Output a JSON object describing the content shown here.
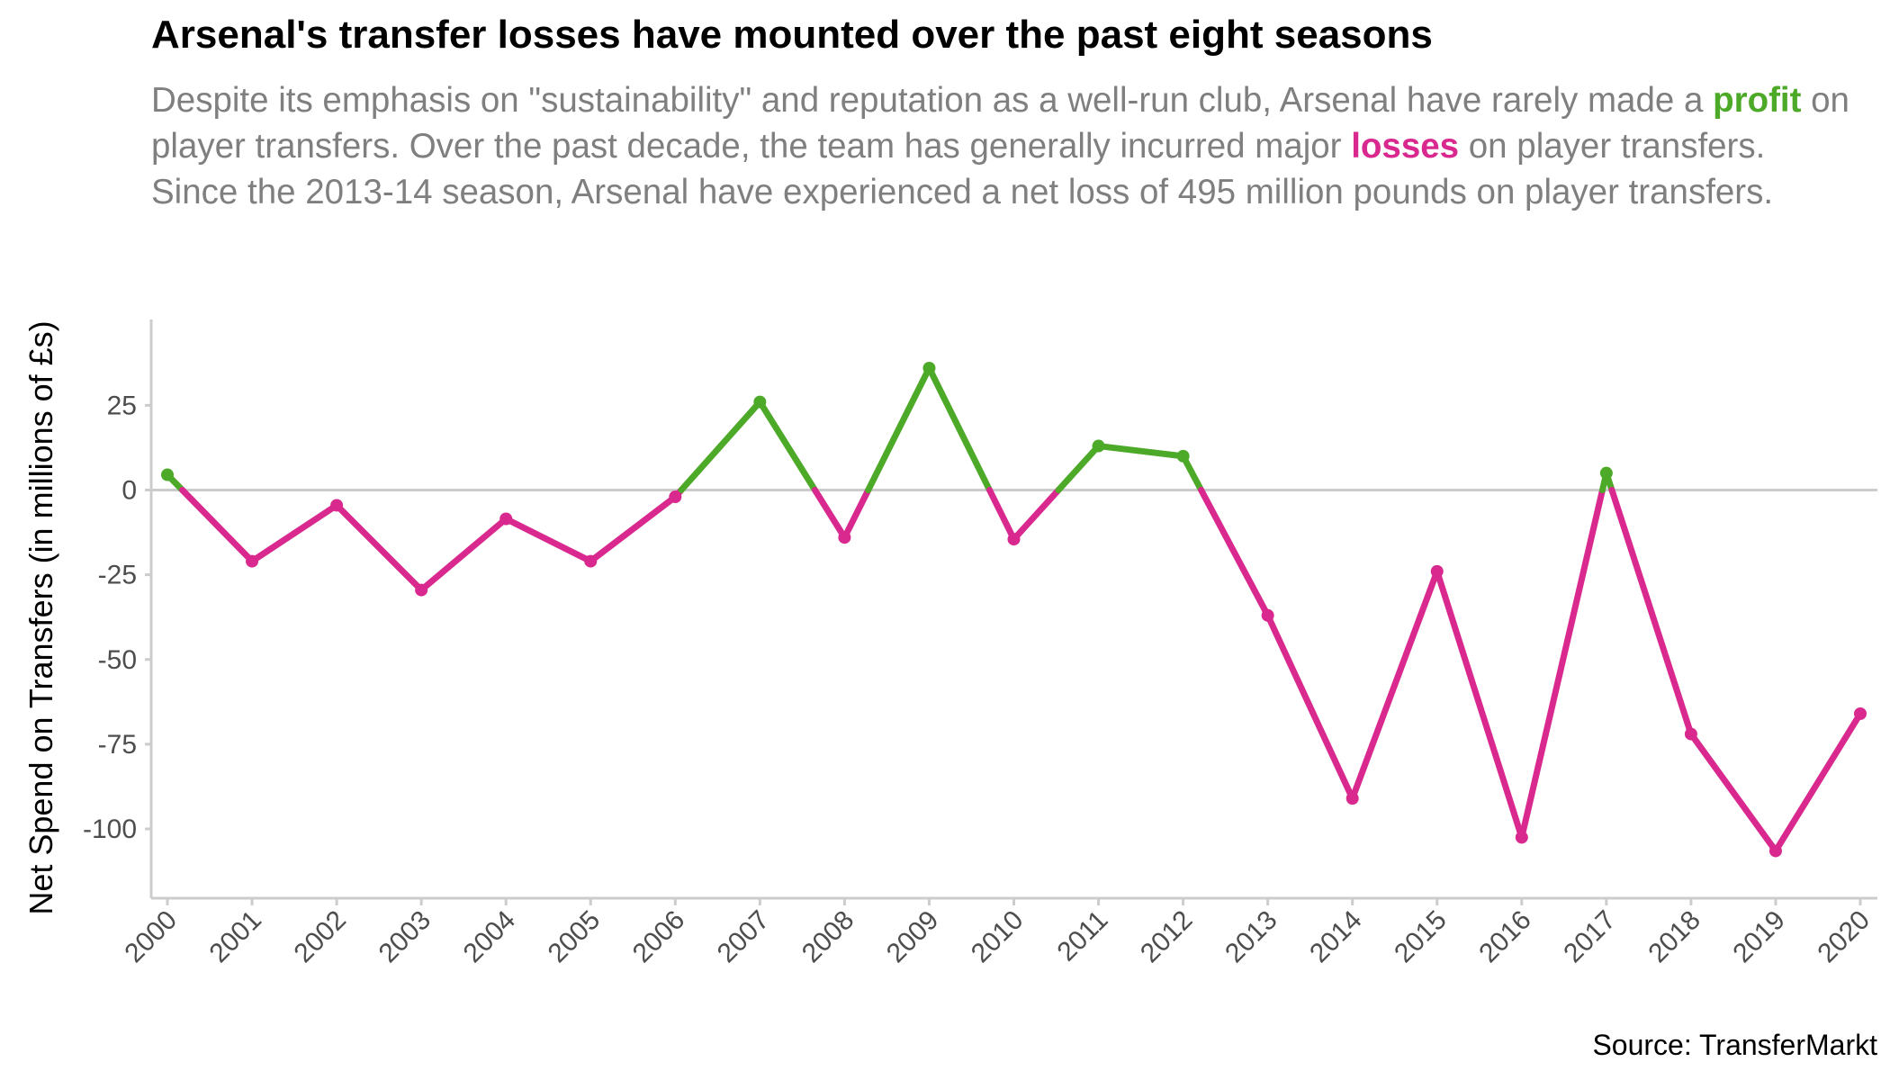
{
  "title": "Arsenal's transfer losses have mounted over the past eight seasons",
  "subtitle": {
    "part1": "Despite its emphasis on \"sustainability\" and reputation as a well-run club, Arsenal have rarely made a ",
    "profit_word": "profit",
    "part2": " on player transfers. Over the past decade, the team has generally incurred major ",
    "loss_word": "losses",
    "part3": " on player transfers. Since the 2013-14 season, Arsenal have experienced a net loss of 495 million pounds on player transfers."
  },
  "source": "Source: TransferMarkt",
  "colors": {
    "profit": "#4daa29",
    "loss": "#d9298f",
    "axis": "#cccccc",
    "zero_line": "#cccccc"
  },
  "chart_data": {
    "type": "line",
    "title": "Arsenal's transfer losses have mounted over the past eight seasons",
    "xlabel": "",
    "ylabel": "Net Spend on Transfers (in millions of £s)",
    "x": [
      "2000",
      "2001",
      "2002",
      "2003",
      "2004",
      "2005",
      "2006",
      "2007",
      "2008",
      "2009",
      "2010",
      "2011",
      "2012",
      "2013",
      "2014",
      "2015",
      "2016",
      "2017",
      "2018",
      "2019",
      "2020"
    ],
    "series": [
      {
        "name": "Net Spend",
        "values": [
          4.5,
          -21,
          -4.5,
          -29.5,
          -8.5,
          -21,
          -2,
          26,
          -14,
          36,
          -14.5,
          13,
          10,
          -37,
          -91,
          -24,
          -102.5,
          5,
          -72,
          -106.5,
          -66
        ]
      }
    ],
    "yticks": [
      25,
      0,
      -25,
      -50,
      -75,
      -100
    ],
    "ytick_labels": [
      "25",
      "0",
      "-25",
      "-50",
      "-75",
      "-100"
    ],
    "ylim": [
      -120,
      50
    ],
    "grid": false,
    "zero_line": true
  }
}
